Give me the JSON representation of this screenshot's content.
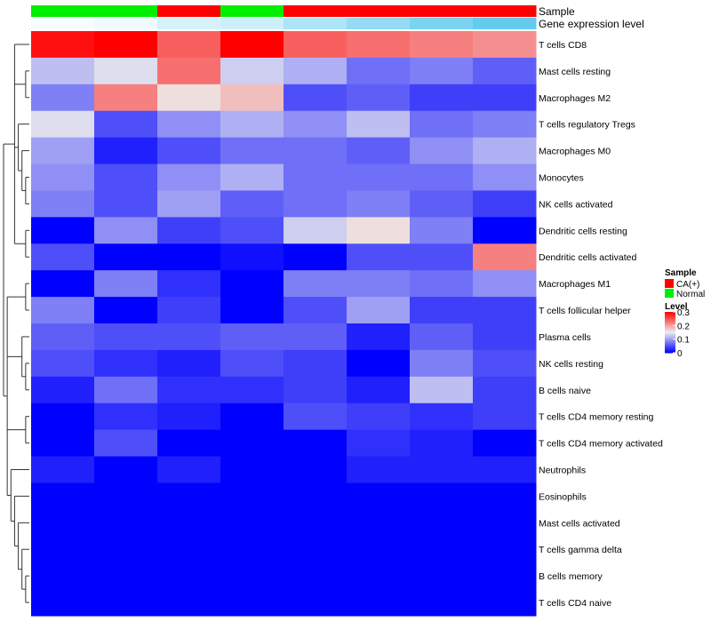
{
  "chart_data": {
    "type": "heatmap",
    "title": "",
    "column_count": 8,
    "annotations": {
      "sample": {
        "label": "Sample",
        "values": [
          "Normal",
          "Normal",
          "CA(+)",
          "Normal",
          "CA(+)",
          "CA(+)",
          "CA(+)",
          "CA(+)"
        ]
      },
      "gene_expression": {
        "label": "Gene expression level",
        "values": [
          0.95,
          0.9,
          0.75,
          0.7,
          0.5,
          0.35,
          0.2,
          0.05
        ]
      }
    },
    "rows": [
      "T cells CD8",
      "Mast cells resting",
      "Macrophages M2",
      "T cells regulatory  Tregs",
      "Macrophages M0",
      "Monocytes",
      "NK cells activated",
      "Dendritic cells resting",
      "Dendritic cells activated",
      "Macrophages M1",
      "T cells follicular helper",
      "Plasma cells",
      "NK cells resting",
      "B cells naive",
      "T cells CD4 memory resting",
      "T cells CD4 memory activated",
      "Neutrophils",
      "Eosinophils",
      "Mast cells activated",
      "T cells gamma delta",
      "B cells memory",
      "T cells CD4 naive"
    ],
    "values": [
      [
        0.29,
        0.3,
        0.24,
        0.3,
        0.24,
        0.23,
        0.22,
        0.21
      ],
      [
        0.12,
        0.14,
        0.23,
        0.13,
        0.11,
        0.07,
        0.08,
        0.06
      ],
      [
        0.08,
        0.22,
        0.16,
        0.18,
        0.05,
        0.06,
        0.04,
        0.04
      ],
      [
        0.14,
        0.05,
        0.09,
        0.11,
        0.09,
        0.12,
        0.07,
        0.08
      ],
      [
        0.1,
        0.02,
        0.05,
        0.07,
        0.07,
        0.06,
        0.09,
        0.11
      ],
      [
        0.09,
        0.05,
        0.09,
        0.11,
        0.07,
        0.07,
        0.07,
        0.09
      ],
      [
        0.08,
        0.05,
        0.1,
        0.06,
        0.07,
        0.08,
        0.06,
        0.04
      ],
      [
        0.0,
        0.09,
        0.04,
        0.05,
        0.13,
        0.16,
        0.08,
        0.0
      ],
      [
        0.05,
        0.0,
        0.0,
        0.01,
        0.0,
        0.05,
        0.05,
        0.22
      ],
      [
        0.0,
        0.08,
        0.03,
        0.0,
        0.08,
        0.08,
        0.07,
        0.09
      ],
      [
        0.08,
        0.0,
        0.04,
        0.0,
        0.05,
        0.1,
        0.04,
        0.04
      ],
      [
        0.06,
        0.05,
        0.05,
        0.06,
        0.06,
        0.02,
        0.06,
        0.04
      ],
      [
        0.05,
        0.03,
        0.02,
        0.05,
        0.04,
        0.0,
        0.08,
        0.05
      ],
      [
        0.02,
        0.07,
        0.03,
        0.03,
        0.04,
        0.02,
        0.12,
        0.04
      ],
      [
        0.0,
        0.03,
        0.02,
        0.0,
        0.05,
        0.04,
        0.03,
        0.04
      ],
      [
        0.0,
        0.05,
        0.0,
        0.0,
        0.0,
        0.03,
        0.02,
        0.0
      ],
      [
        0.02,
        0.0,
        0.02,
        0.0,
        0.0,
        0.02,
        0.02,
        0.02
      ],
      [
        0.0,
        0.0,
        0.0,
        0.0,
        0.0,
        0.0,
        0.0,
        0.0
      ],
      [
        0.0,
        0.0,
        0.0,
        0.0,
        0.0,
        0.0,
        0.0,
        0.0
      ],
      [
        0.0,
        0.0,
        0.0,
        0.0,
        0.0,
        0.0,
        0.0,
        0.0
      ],
      [
        0.0,
        0.0,
        0.0,
        0.0,
        0.0,
        0.0,
        0.0,
        0.0
      ],
      [
        0.0,
        0.0,
        0.0,
        0.0,
        0.0,
        0.0,
        0.0,
        0.0
      ]
    ],
    "color_scale": {
      "min": 0,
      "mid": 0.15,
      "max": 0.3,
      "low_color": "#0000ff",
      "mid_color": "#eeeeee",
      "high_color": "#ff0000"
    },
    "legend": {
      "position": "right",
      "sample_title": "Sample",
      "sample_entries": [
        {
          "label": "CA(+)",
          "color": "#ff0000"
        },
        {
          "label": "Normal",
          "color": "#00ee00"
        }
      ],
      "level_title": "Level",
      "level_ticks": [
        {
          "value": 0.3,
          "label": "0.3"
        },
        {
          "value": 0.2,
          "label": "0.2"
        },
        {
          "value": 0.1,
          "label": "0.1"
        },
        {
          "value": 0,
          "label": "0"
        }
      ]
    },
    "gene_expression_colors": {
      "low": "#5bc8ec",
      "high": "#ffffff"
    },
    "dendrogram": {
      "side": "left",
      "clusters": [
        [
          0,
          [
            1,
            2
          ],
          [
            3,
            [
              4,
              [
                5,
                6
              ]
            ]
          ],
          [
            7,
            8
          ]
        ],
        [
          [
            9,
            10
          ],
          [
            11,
            [
              12,
              13
            ]
          ],
          [
            14,
            15
          ],
          [
            16,
            [
              17,
              [
                18,
                [
                  19,
                  [
                    20,
                    21
                  ]
                ]
              ]
            ]
          ]
        ]
      ]
    }
  }
}
